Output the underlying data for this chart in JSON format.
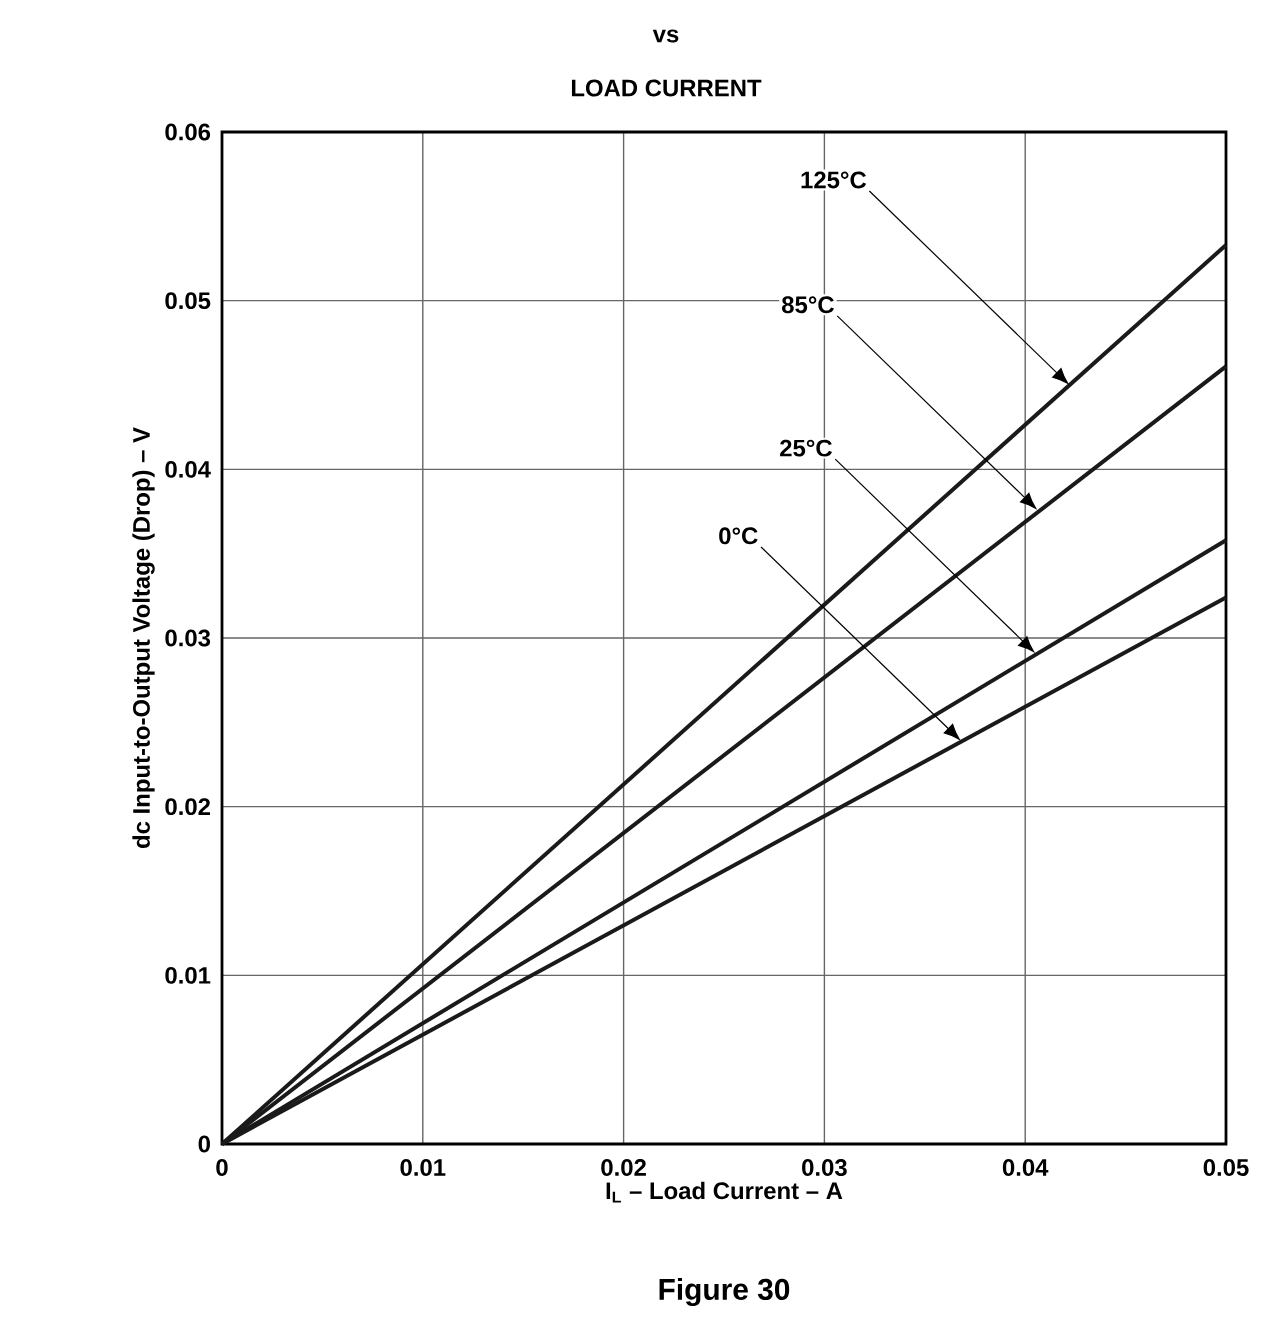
{
  "chart_data": {
    "type": "line",
    "title": "vs",
    "subtitle": "LOAD CURRENT",
    "xlabel": "I$_{L}$ – Load Current – A",
    "ylabel": "dc Input-to-Output Voltage (Drop) – V",
    "x": [
      0,
      0.05
    ],
    "series": [
      {
        "color": "#1a1a1a",
        "values": [
          0,
          0.0533
        ]
      },
      {
        "color": "#1a1a1a",
        "values": [
          0,
          0.0461
        ]
      },
      {
        "color": "#1a1a1a",
        "values": [
          0,
          0.0358
        ]
      },
      {
        "color": "#1a1a1a",
        "values": [
          0,
          0.0324
        ]
      }
    ],
    "xlim": [
      0,
      0.05
    ],
    "ylim": [
      0,
      0.06
    ],
    "xticks": [
      0,
      0.01,
      0.02,
      0.03,
      0.04,
      0.05
    ],
    "yticks": [
      0,
      0.01,
      0.02,
      0.03,
      0.04,
      0.05,
      0.06
    ],
    "grid": true,
    "marker": "none",
    "line_style": "solid",
    "annotations": [
      {
        "text": "125°C",
        "x": 0.0422,
        "y": 0.045
      },
      {
        "text": "85°C",
        "x": 0.0406,
        "y": 0.0376
      },
      {
        "text": "25°C",
        "x": 0.0405,
        "y": 0.0291
      },
      {
        "text": "0°C",
        "x": 0.0368,
        "y": 0.0239
      },
      "Figure 30"
    ]
  }
}
